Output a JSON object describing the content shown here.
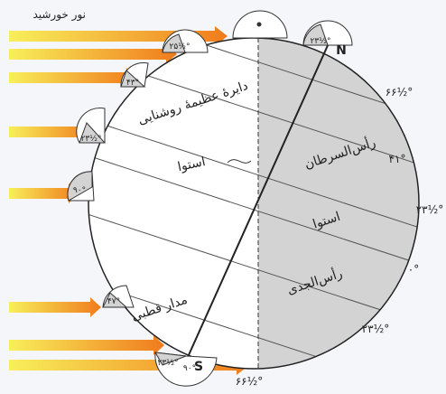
{
  "labels": {
    "sunlight": "نور خورشید",
    "great_circle": "دایرهٔ عظیمهٔ روشنایی",
    "equator_lit": "استوا",
    "equator_dark": "استوا",
    "tropic_cancer": "رأس‌السرطان",
    "tropic_capricorn": "رأس‌الجدی",
    "polar_circle": "مدار قطبی",
    "north": "N",
    "south": "S"
  },
  "angles": {
    "top_north_inner": "۲۳½°",
    "right_66": "۶۶½°",
    "right_41": "۴۱°",
    "right_23_5": "۲۳½°",
    "right_0": "۰°",
    "right_23_5_lower": "۲۳½°",
    "bottom_66": "۶۶½°",
    "bottom_23": "۲۳½°",
    "bottom_90": "۹۰°",
    "left_25": "۲۵½°",
    "left_43": "۴۳°",
    "left_23": "۲۳½°",
    "left_90": "۹۰°",
    "left_47": "۴۷°"
  },
  "colors": {
    "arrow_start": "#f7e84a",
    "arrow_end": "#f07b1c",
    "dark_side": "#d3d3d3",
    "light_side": "#ffffff",
    "outline": "#222222"
  }
}
